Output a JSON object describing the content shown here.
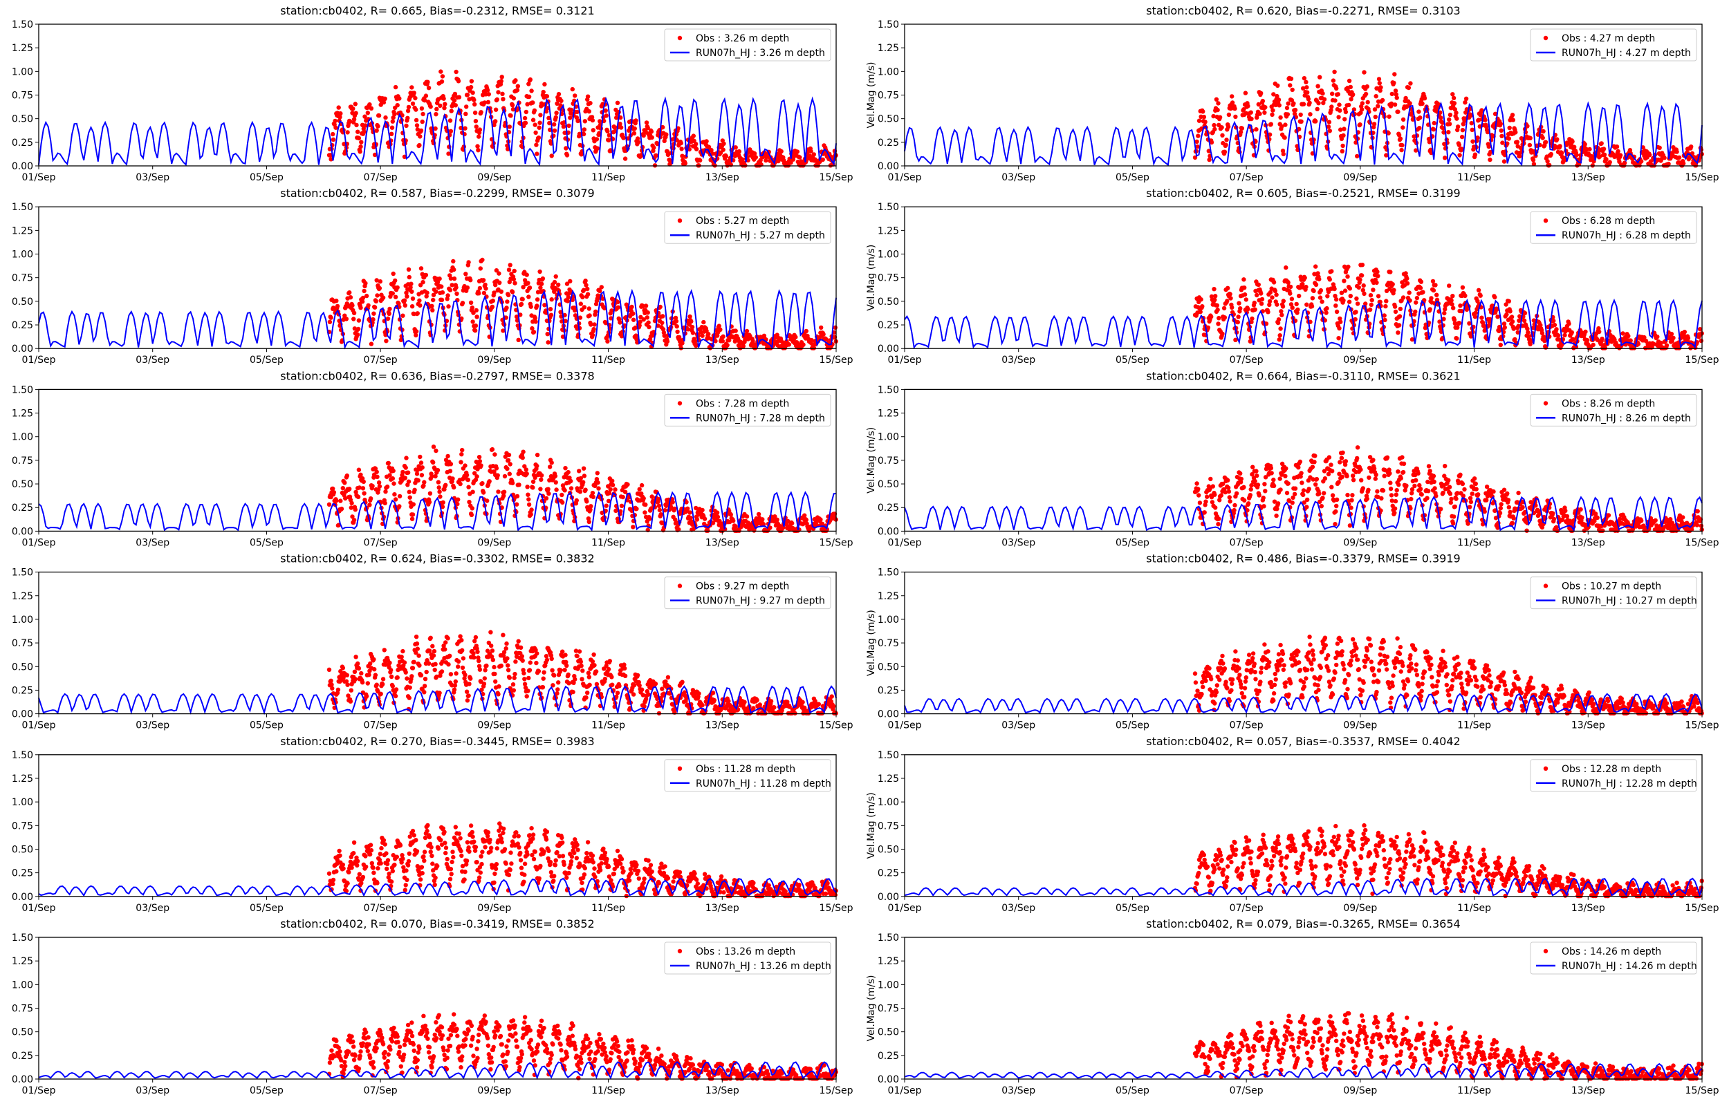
{
  "chart_data": {
    "type": "scatter+line",
    "layout": "6 rows x 2 columns",
    "xlabel": "",
    "ylabel_right_column": "Vel.Mag (m/s)",
    "x_ticks": [
      "01/Sep",
      "03/Sep",
      "05/Sep",
      "07/Sep",
      "09/Sep",
      "11/Sep",
      "13/Sep",
      "15/Sep"
    ],
    "xlim_days": [
      1,
      15
    ],
    "y_ticks": [
      "0.00",
      "0.25",
      "0.50",
      "0.75",
      "1.00",
      "1.25",
      "1.50"
    ],
    "ylim": [
      0,
      1.5
    ],
    "obs_start_day": 6.1,
    "legend_placement": "top-right",
    "colors": {
      "obs": "#ff0000",
      "model": "#0000ff"
    },
    "panels": [
      {
        "title": "station:cb0402, R= 0.665, Bias=-0.2312, RMSE= 0.3121",
        "obs_label": "Obs : 3.26 m depth",
        "model_label": "RUN07h_HJ : 3.26 m depth",
        "model_peak": 0.45,
        "model_peak_late": 0.7,
        "obs_peak": 1.0
      },
      {
        "title": "station:cb0402, R= 0.620, Bias=-0.2271, RMSE= 0.3103",
        "obs_label": "Obs : 4.27 m depth",
        "model_label": "RUN07h_HJ : 4.27 m depth",
        "model_peak": 0.4,
        "model_peak_late": 0.65,
        "obs_peak": 1.0
      },
      {
        "title": "station:cb0402, R= 0.587, Bias=-0.2299, RMSE= 0.3079",
        "obs_label": "Obs : 5.27 m depth",
        "model_label": "RUN07h_HJ : 5.27 m depth",
        "model_peak": 0.38,
        "model_peak_late": 0.6,
        "obs_peak": 0.95
      },
      {
        "title": "station:cb0402, R= 0.605, Bias=-0.2521, RMSE= 0.3199",
        "obs_label": "Obs : 6.28 m depth",
        "model_label": "RUN07h_HJ : 6.28 m depth",
        "model_peak": 0.33,
        "model_peak_late": 0.5,
        "obs_peak": 0.92
      },
      {
        "title": "station:cb0402, R= 0.636, Bias=-0.2797, RMSE= 0.3378",
        "obs_label": "Obs : 7.28 m depth",
        "model_label": "RUN07h_HJ : 7.28 m depth",
        "model_peak": 0.28,
        "model_peak_late": 0.4,
        "obs_peak": 0.9
      },
      {
        "title": "station:cb0402, R= 0.664, Bias=-0.3110, RMSE= 0.3621",
        "obs_label": "Obs : 8.26 m depth",
        "model_label": "RUN07h_HJ : 8.26 m depth",
        "model_peak": 0.25,
        "model_peak_late": 0.35,
        "obs_peak": 0.88
      },
      {
        "title": "station:cb0402, R= 0.624, Bias=-0.3302, RMSE= 0.3832",
        "obs_label": "Obs : 9.27 m depth",
        "model_label": "RUN07h_HJ : 9.27 m depth",
        "model_peak": 0.2,
        "model_peak_late": 0.28,
        "obs_peak": 0.86
      },
      {
        "title": "station:cb0402, R= 0.486, Bias=-0.3379, RMSE= 0.3919",
        "obs_label": "Obs : 10.27 m depth",
        "model_label": "RUN07h_HJ : 10.27 m depth",
        "model_peak": 0.15,
        "model_peak_late": 0.2,
        "obs_peak": 0.85
      },
      {
        "title": "station:cb0402, R= 0.270, Bias=-0.3445, RMSE= 0.3983",
        "obs_label": "Obs : 11.28 m depth",
        "model_label": "RUN07h_HJ : 11.28 m depth",
        "model_peak": 0.1,
        "model_peak_late": 0.18,
        "obs_peak": 0.8
      },
      {
        "title": "station:cb0402, R= 0.057, Bias=-0.3537, RMSE= 0.4042",
        "obs_label": "Obs : 12.28 m depth",
        "model_label": "RUN07h_HJ : 12.28 m depth",
        "model_peak": 0.08,
        "model_peak_late": 0.18,
        "obs_peak": 0.78
      },
      {
        "title": "station:cb0402, R= 0.070, Bias=-0.3419, RMSE= 0.3852",
        "obs_label": "Obs : 13.26 m depth",
        "model_label": "RUN07h_HJ : 13.26 m depth",
        "model_peak": 0.07,
        "model_peak_late": 0.17,
        "obs_peak": 0.72
      },
      {
        "title": "station:cb0402, R= 0.079, Bias=-0.3265, RMSE= 0.3654",
        "obs_label": "Obs : 14.26 m depth",
        "model_label": "RUN07h_HJ : 14.26 m depth",
        "model_peak": 0.06,
        "model_peak_late": 0.15,
        "obs_peak": 0.72
      }
    ]
  }
}
